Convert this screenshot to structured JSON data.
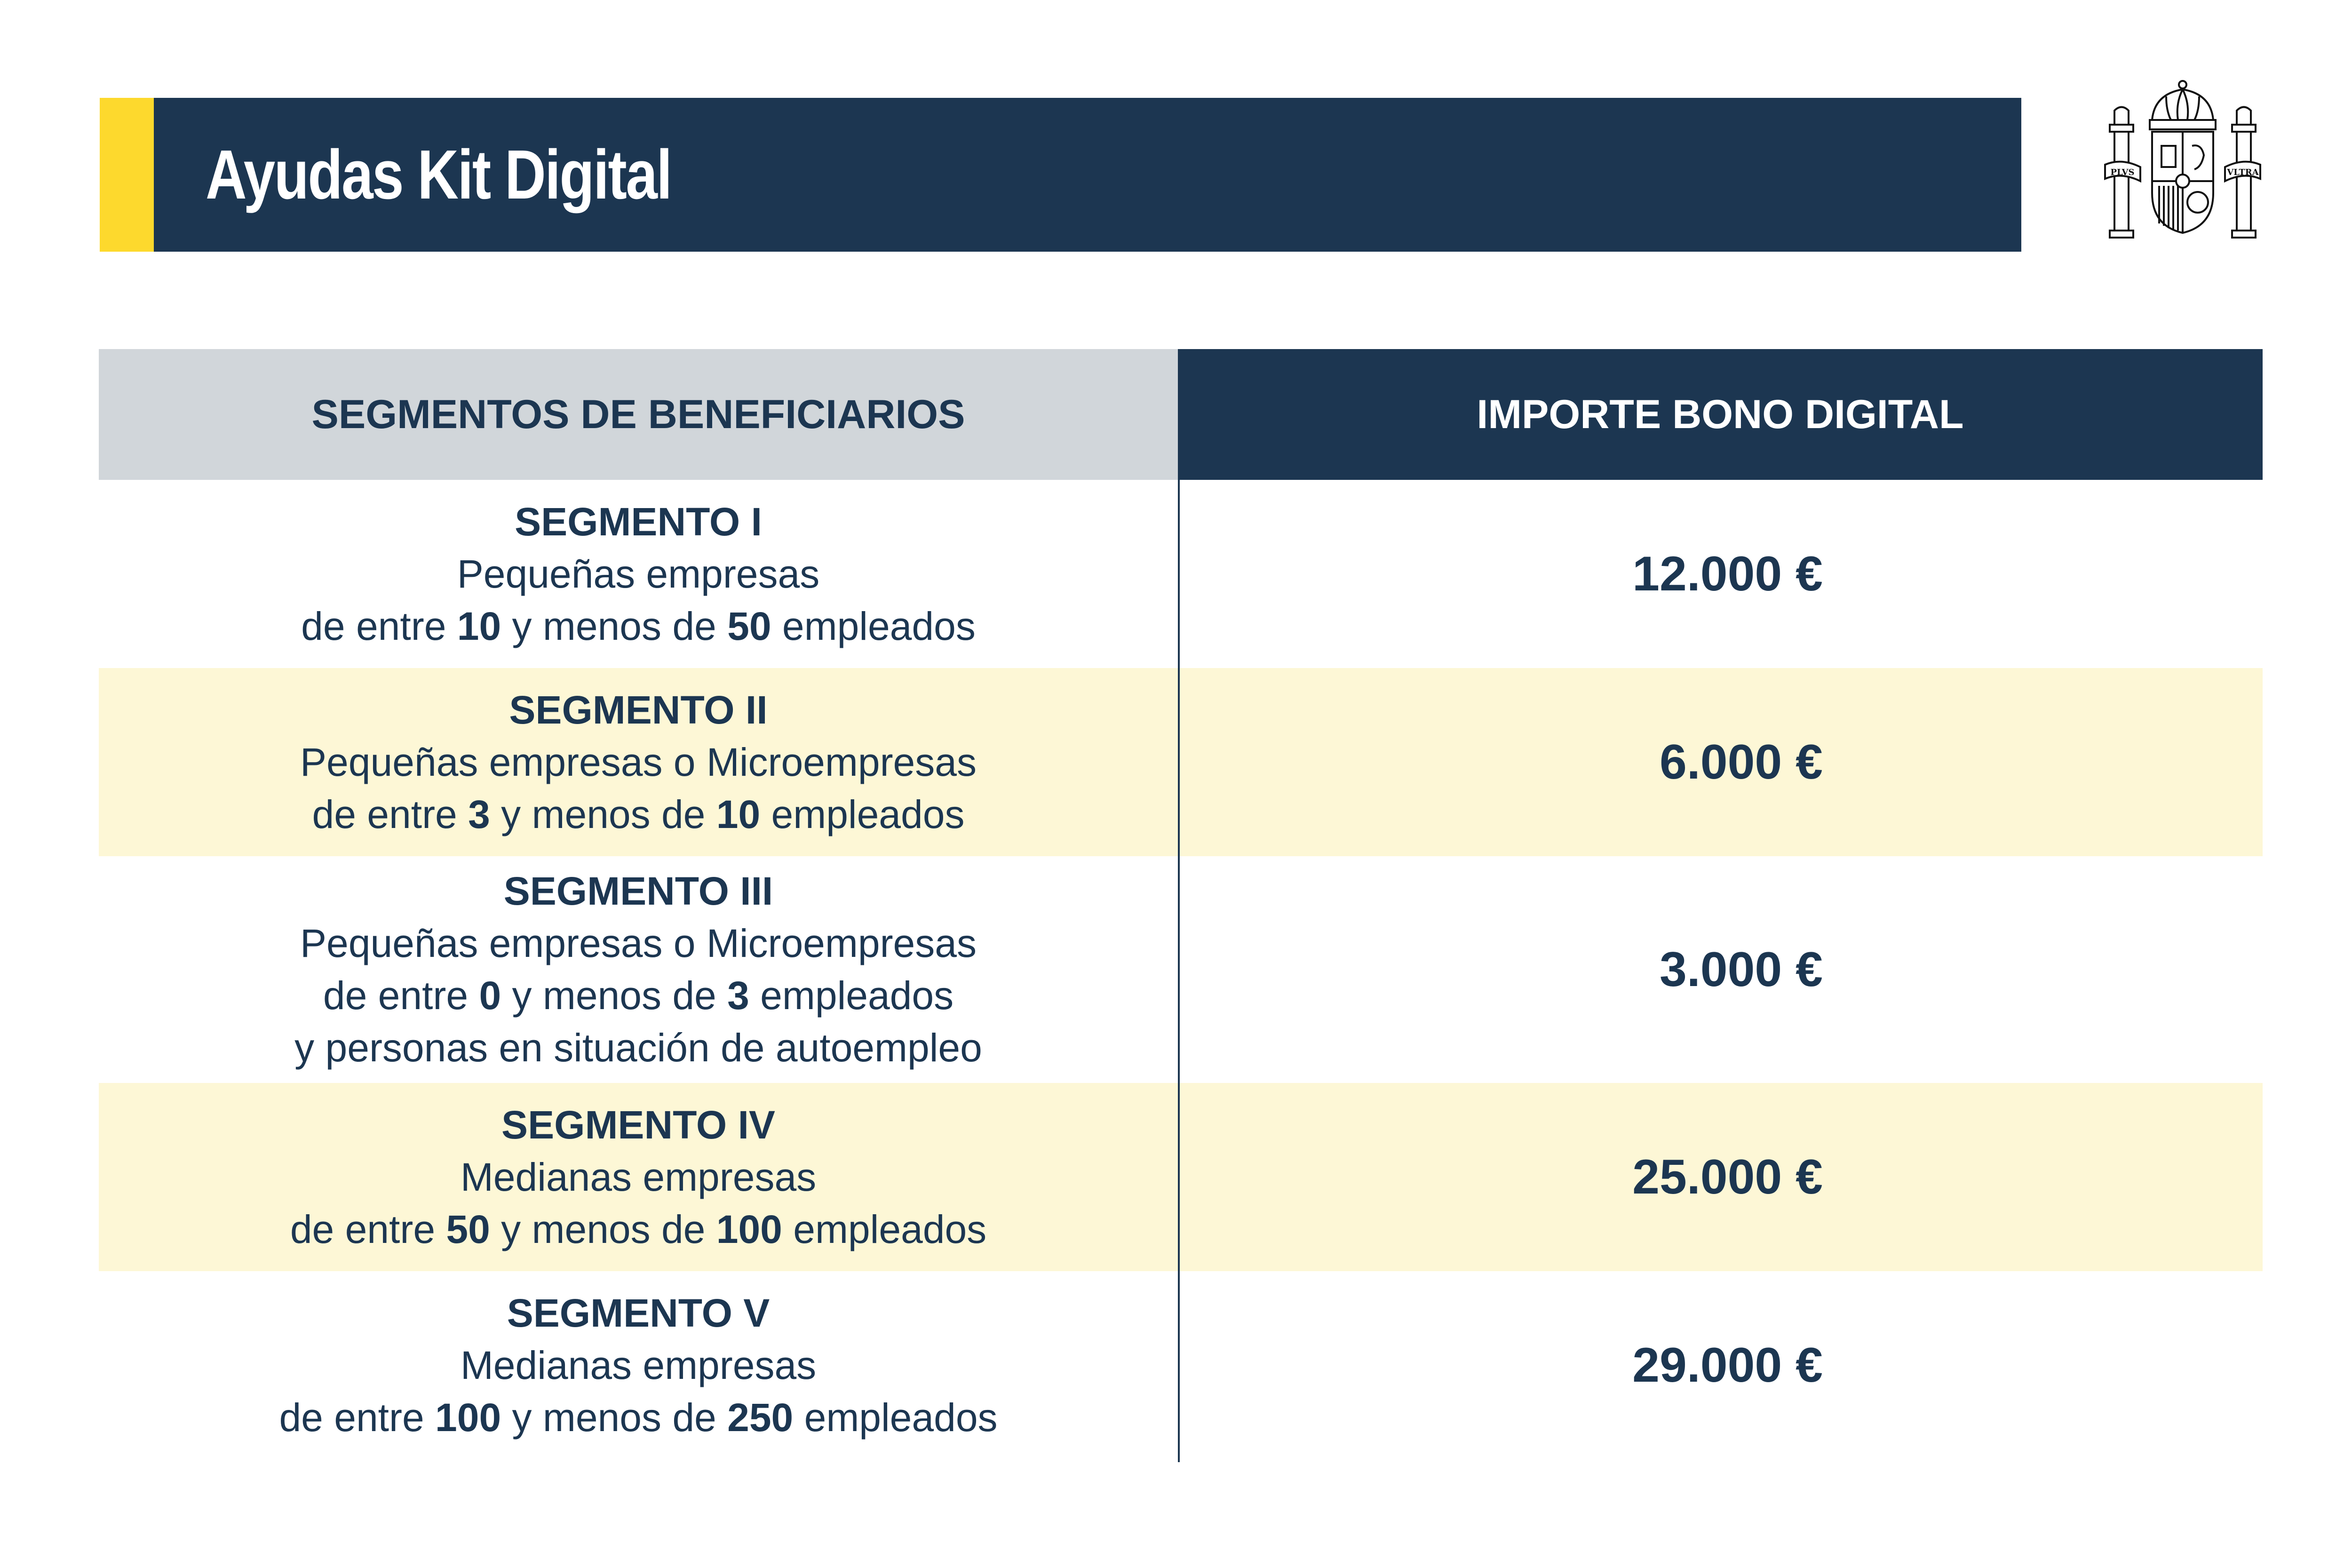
{
  "header": {
    "title": "Ayudas Kit Digital"
  },
  "colors": {
    "navy": "#1c3651",
    "yellow": "#fdd92d",
    "row_highlight": "#fdf7d6",
    "header_gray": "#d1d6da"
  },
  "emblem": {
    "icon": "spain-coat-of-arms-icon",
    "motto_left": "PLVS",
    "motto_right": "VLTRA"
  },
  "table": {
    "headers": [
      "SEGMENTOS DE BENEFICIARIOS",
      "IMPORTE BONO DIGITAL"
    ],
    "rows": [
      {
        "name": "SEGMENTO I",
        "line1": "Pequeñas empresas",
        "line2": {
          "a": "de entre ",
          "n1": "10",
          "b": " y menos de ",
          "n2": "50",
          "c": " empleados"
        },
        "amount": "12.000 €"
      },
      {
        "name": "SEGMENTO II",
        "line1": "Pequeñas empresas o Microempresas",
        "line2": {
          "a": "de entre ",
          "n1": "3",
          "b": " y menos de ",
          "n2": "10",
          "c": " empleados"
        },
        "amount": "6.000 €"
      },
      {
        "name": "SEGMENTO III",
        "line1": "Pequeñas empresas o Microempresas",
        "line2": {
          "a": "de entre ",
          "n1": "0",
          "b": " y menos de ",
          "n2": "3",
          "c": " empleados"
        },
        "line3": "y personas en situación de autoempleo",
        "amount": "3.000 €"
      },
      {
        "name": "SEGMENTO IV",
        "line1": "Medianas empresas",
        "line2": {
          "a": "de entre ",
          "n1": "50",
          "b": " y menos de ",
          "n2": "100",
          "c": " empleados"
        },
        "amount": "25.000 €"
      },
      {
        "name": "SEGMENTO V",
        "line1": "Medianas empresas",
        "line2": {
          "a": "de entre ",
          "n1": "100",
          "b": " y menos de ",
          "n2": "250",
          "c": " empleados"
        },
        "amount": "29.000 €"
      }
    ]
  }
}
